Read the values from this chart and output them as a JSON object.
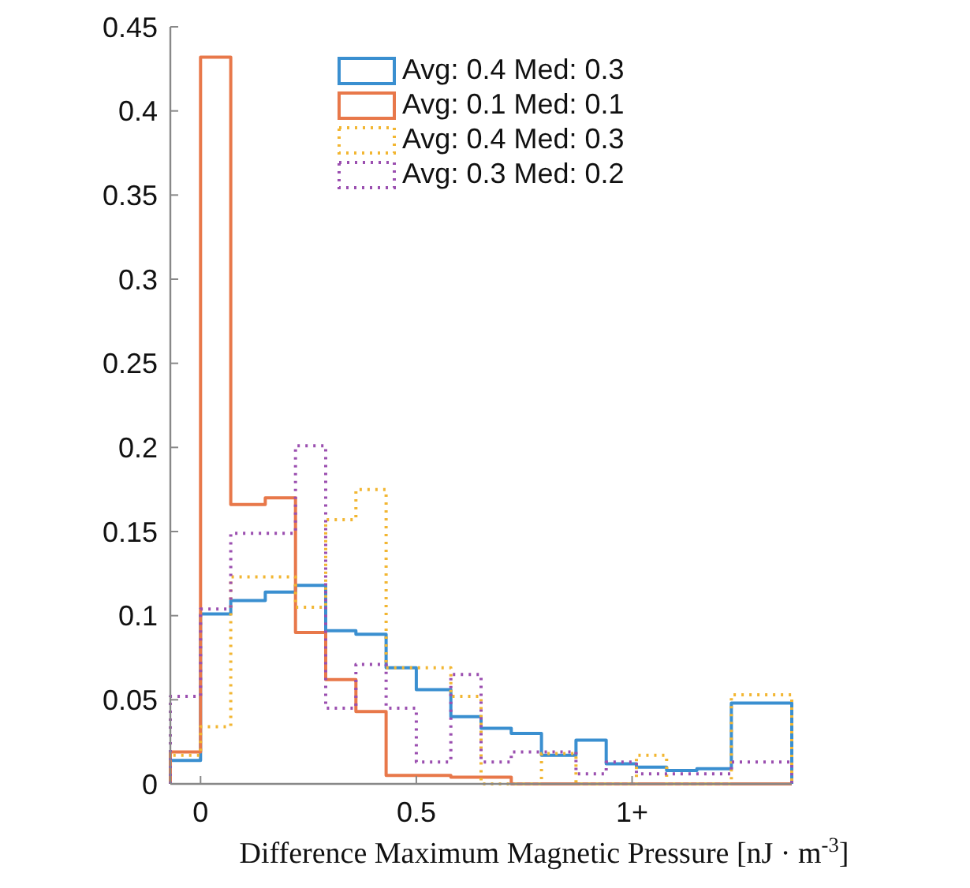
{
  "chart_data": {
    "type": "histogram",
    "xlabel": "Difference Maximum Magnetic Pressure [nJ · m$^{-3}$]",
    "bins": [
      -0.07,
      0,
      0.07,
      0.15,
      0.22,
      0.29,
      0.36,
      0.43,
      0.5,
      0.58,
      0.65,
      0.72,
      0.79,
      0.87,
      0.94,
      1.01,
      1.08,
      1.15,
      1.23,
      1.3,
      1.37
    ],
    "series": [
      {
        "name": "Avg: 0.4 Med: 0.3",
        "color": "#3a8fd0",
        "line_style": "solid",
        "values": [
          0.014,
          0.101,
          0.109,
          0.114,
          0.118,
          0.091,
          0.089,
          0.069,
          0.056,
          0.04,
          0.033,
          0.03,
          0.017,
          0.026,
          0.012,
          0.01,
          0.008,
          0.009,
          0.048,
          0.048
        ]
      },
      {
        "name": "Avg: 0.1 Med: 0.1",
        "color": "#e8784a",
        "line_style": "solid",
        "values": [
          0.019,
          0.432,
          0.166,
          0.17,
          0.09,
          0.062,
          0.043,
          0.005,
          0.005,
          0.004,
          0.004,
          0,
          0,
          0,
          0,
          0,
          0,
          0,
          0,
          0
        ]
      },
      {
        "name": "Avg: 0.4 Med: 0.3",
        "color": "#f2b632",
        "line_style": "dotted",
        "values": [
          0.017,
          0.034,
          0.123,
          0.123,
          0.105,
          0.157,
          0.175,
          0.069,
          0.069,
          0.052,
          0,
          0,
          0.018,
          0,
          0,
          0.017,
          0,
          0,
          0.053,
          0.053
        ]
      },
      {
        "name": "Avg: 0.3 Med: 0.2",
        "color": "#9b4fb0",
        "line_style": "dotted",
        "values": [
          0.052,
          0.104,
          0.149,
          0.149,
          0.201,
          0.045,
          0.071,
          0.045,
          0.013,
          0.065,
          0.013,
          0.019,
          0.019,
          0.006,
          0.013,
          0.006,
          0.006,
          0.006,
          0.013,
          0.013
        ]
      }
    ],
    "xlim": [
      -0.07,
      1.37
    ],
    "xticks": [
      0,
      0.5,
      {
        "value": 1,
        "label": "1+"
      }
    ],
    "ylim": [
      0,
      0.45
    ],
    "yticks": [
      0,
      0.05,
      0.1,
      0.15,
      0.2,
      0.25,
      0.3,
      0.35,
      0.4,
      0.45
    ],
    "grid": false,
    "legend": "top"
  }
}
